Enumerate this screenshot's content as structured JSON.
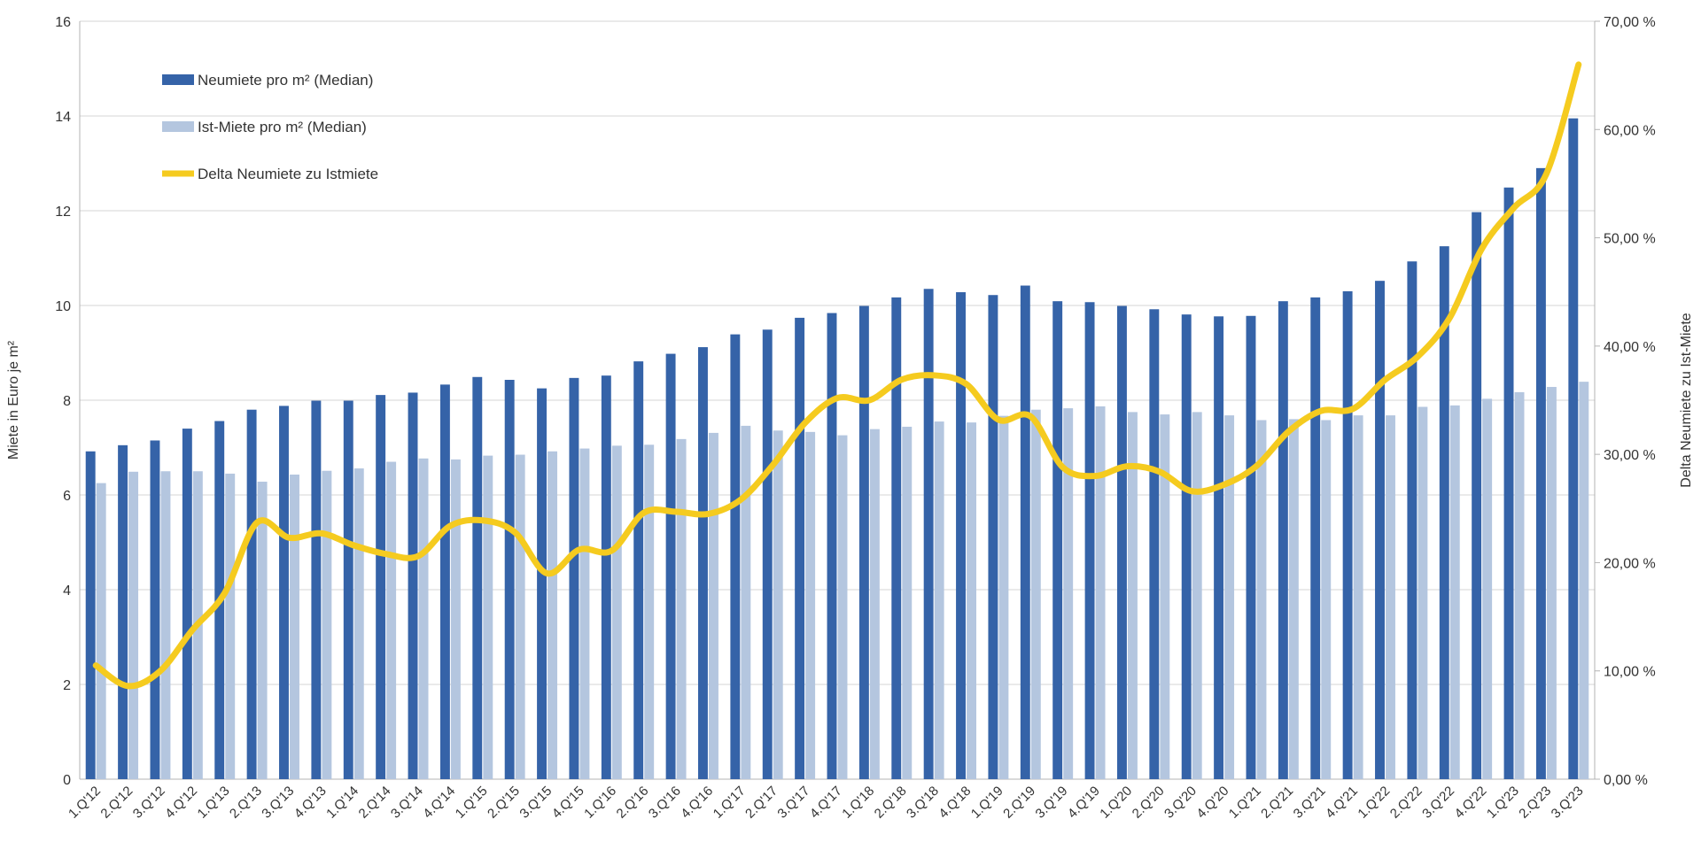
{
  "chart_data": {
    "type": "bar",
    "categories": [
      "1.Q'12",
      "2.Q'12",
      "3.Q'12",
      "4.Q'12",
      "1.Q'13",
      "2.Q'13",
      "3.Q'13",
      "4.Q'13",
      "1.Q'14",
      "2.Q'14",
      "3.Q'14",
      "4.Q'14",
      "1.Q'15",
      "2.Q'15",
      "3.Q'15",
      "4.Q'15",
      "1.Q'16",
      "2.Q'16",
      "3.Q'16",
      "4.Q'16",
      "1.Q'17",
      "2.Q'17",
      "3.Q'17",
      "4.Q'17",
      "1.Q'18",
      "2.Q'18",
      "3.Q'18",
      "4.Q'18",
      "1.Q'19",
      "2.Q'19",
      "3.Q'19",
      "4.Q'19",
      "1.Q'20",
      "2.Q'20",
      "3.Q'20",
      "4.Q'20",
      "1.Q'21",
      "2.Q'21",
      "3.Q'21",
      "4.Q'21",
      "1.Q'22",
      "2.Q'22",
      "3.Q'22",
      "4.Q'22",
      "1.Q'23",
      "2.Q'23",
      "3.Q'23"
    ],
    "series": [
      {
        "name": "Neumiete pro m² (Median)",
        "type": "bar",
        "axis": "left",
        "color": "#3563a8",
        "values": [
          6.92,
          7.05,
          7.15,
          7.4,
          7.56,
          7.8,
          7.88,
          7.99,
          7.99,
          8.11,
          8.16,
          8.33,
          8.49,
          8.43,
          8.25,
          8.47,
          8.52,
          8.82,
          8.98,
          9.12,
          9.39,
          9.49,
          9.74,
          9.84,
          9.99,
          10.17,
          10.35,
          10.28,
          10.22,
          10.42,
          10.09,
          10.07,
          9.99,
          9.92,
          9.81,
          9.77,
          9.78,
          10.09,
          10.17,
          10.3,
          10.52,
          10.93,
          11.25,
          11.97,
          12.49,
          12.9,
          13.95
        ]
      },
      {
        "name": "Ist-Miete pro m²  (Median)",
        "type": "bar",
        "axis": "left",
        "color": "#b4c6df",
        "values": [
          6.25,
          6.49,
          6.5,
          6.5,
          6.45,
          6.28,
          6.43,
          6.51,
          6.56,
          6.7,
          6.77,
          6.75,
          6.83,
          6.85,
          6.92,
          6.98,
          7.04,
          7.06,
          7.18,
          7.31,
          7.46,
          7.36,
          7.33,
          7.26,
          7.39,
          7.44,
          7.55,
          7.53,
          7.67,
          7.8,
          7.83,
          7.87,
          7.75,
          7.7,
          7.75,
          7.68,
          7.58,
          7.6,
          7.58,
          7.68,
          7.68,
          7.86,
          7.89,
          8.03,
          8.17,
          8.28,
          8.39
        ]
      },
      {
        "name": "Delta Neumiete zu Istmiete",
        "type": "line",
        "axis": "right",
        "color": "#f5cb1f",
        "values": [
          10.5,
          8.6,
          10.0,
          13.8,
          17.2,
          23.7,
          22.3,
          22.7,
          21.6,
          20.8,
          20.6,
          23.4,
          23.9,
          22.8,
          19.0,
          21.2,
          21.1,
          24.6,
          24.7,
          24.5,
          25.8,
          29.0,
          32.9,
          35.2,
          35.0,
          36.9,
          37.3,
          36.5,
          33.2,
          33.5,
          28.8,
          28.0,
          28.9,
          28.4,
          26.6,
          27.2,
          28.9,
          32.1,
          34.0,
          34.2,
          36.9,
          39.0,
          42.6,
          49.0,
          52.8,
          55.9,
          66.0
        ]
      }
    ],
    "ylabel": "Miete in Euro je m²",
    "y2label": "Delta Neumiete zu Ist-Miete",
    "ylim": [
      0,
      16
    ],
    "y2lim": [
      0,
      70
    ],
    "yticks": [
      "0",
      "2",
      "4",
      "6",
      "8",
      "10",
      "12",
      "14",
      "16"
    ],
    "y2ticks": [
      "0,00 %",
      "10,00 %",
      "20,00 %",
      "30,00 %",
      "40,00 %",
      "50,00 %",
      "60,00 %",
      "70,00 %"
    ],
    "grid": true,
    "legend_position": "top-left"
  }
}
